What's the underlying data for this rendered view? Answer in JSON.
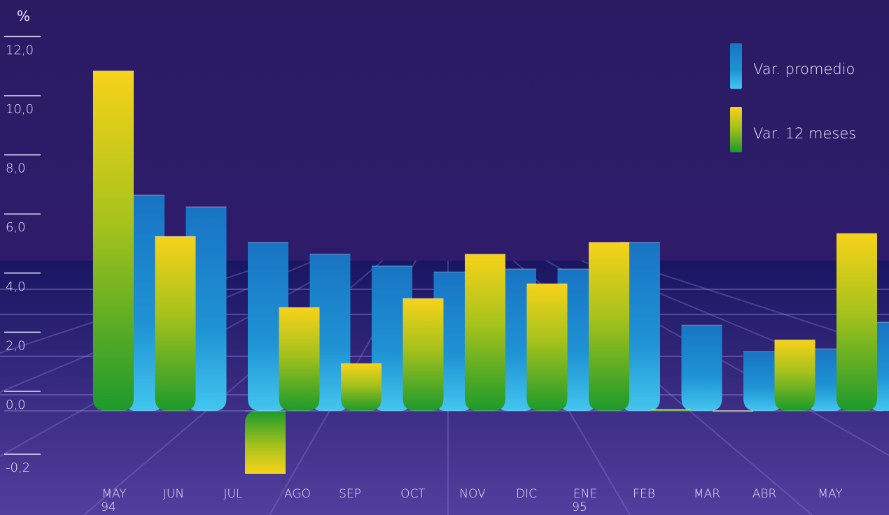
{
  "chart_data": {
    "type": "bar",
    "unit_label": "%",
    "categories": [
      "MAY",
      "JUN",
      "JUL",
      "AGO",
      "SEP",
      "OCT",
      "NOV",
      "DIC",
      "ENE",
      "FEB",
      "MAR",
      "ABR",
      "MAY"
    ],
    "category_sublabels": [
      "94",
      "",
      "",
      "",
      "",
      "",
      "",
      "",
      "95",
      "",
      "",
      "",
      ""
    ],
    "y_ticks": [
      "12,0",
      "10,0",
      "8,0",
      "6,0",
      "4,0",
      "2,0",
      "0,0",
      "-0,2"
    ],
    "series": [
      {
        "name": "Var. 12 meses",
        "color_top": "#f7d21a",
        "color_bottom": "#1c9a2c",
        "values": [
          11.5,
          5.9,
          -0.2,
          3.5,
          1.6,
          3.8,
          5.3,
          4.3,
          5.7,
          0.05,
          0.01,
          2.4,
          6.0
        ]
      },
      {
        "name": "Var. promedio",
        "color_top": "#1874c4",
        "color_bottom": "#43c6ef",
        "values": [
          7.3,
          6.9,
          5.7,
          5.3,
          4.9,
          4.7,
          4.8,
          4.8,
          5.7,
          2.9,
          2.0,
          2.1,
          3.0
        ]
      }
    ],
    "legend_position": "top-right",
    "background_top": "#2a1b63",
    "background_bottom": "#4f3a9a"
  }
}
